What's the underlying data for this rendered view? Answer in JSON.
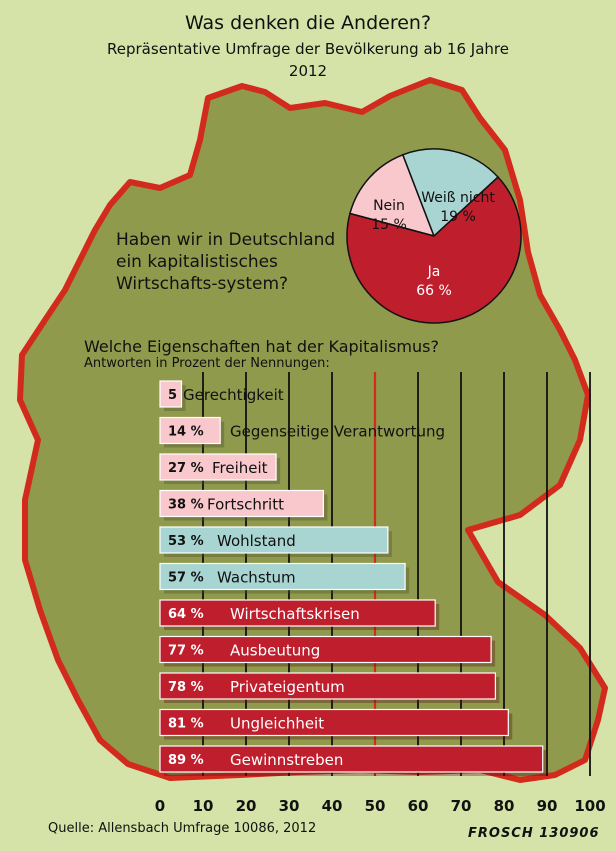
{
  "header": {
    "title": "Was denken die Anderen?",
    "subtitle": "Repräsentative Umfrage der Bevölkerung ab 16 Jahre",
    "year": "2012"
  },
  "question1": "Haben wir in Deutschland ein kapitalistisches Wirtschafts-system?",
  "question2": "Welche Eigenschaften hat der Kapitalismus?",
  "question2_note": "Antworten in Prozent der Nennungen:",
  "footer": {
    "source": "Quelle: Allensbach Umfrage 10086, 2012",
    "signature": "FROSCH 130906"
  },
  "colors": {
    "background": "#d5e3a8",
    "map_fill": "#8f9a4c",
    "map_outline": "#d22b1e",
    "pink": "#f8c8cc",
    "teal": "#a8d5d2",
    "red": "#bf1e2d"
  },
  "chart_data": [
    {
      "type": "pie",
      "slices": [
        {
          "label": "Ja",
          "value": 66,
          "display": "66 %",
          "color": "#bf1e2d"
        },
        {
          "label": "Nein",
          "value": 15,
          "display": "15 %",
          "color": "#f8c8cc"
        },
        {
          "label": "Weiß nicht",
          "value": 19,
          "display": "19 %",
          "color": "#a8d5d2"
        }
      ]
    },
    {
      "type": "bar",
      "orientation": "horizontal",
      "categories": [
        "Gerechtigkeit",
        "Gegenseitige Verantwortung",
        "Freiheit",
        "Fortschritt",
        "Wohlstand",
        "Wachstum",
        "Wirtschaftskrisen",
        "Ausbeutung",
        "Privateigentum",
        "Ungleichheit",
        "Gewinnstreben"
      ],
      "values": [
        5,
        14,
        27,
        38,
        53,
        57,
        64,
        77,
        78,
        81,
        89
      ],
      "value_labels": [
        "5",
        "14 %",
        "27 %",
        "38 %",
        "53 %",
        "57 %",
        "64 %",
        "77 %",
        "78 %",
        "81 %",
        "89 %"
      ],
      "colors": [
        "#f8c8cc",
        "#f8c8cc",
        "#f8c8cc",
        "#f8c8cc",
        "#a8d5d2",
        "#a8d5d2",
        "#bf1e2d",
        "#bf1e2d",
        "#bf1e2d",
        "#bf1e2d",
        "#bf1e2d"
      ],
      "label_colors": [
        "#111111",
        "#111111",
        "#111111",
        "#111111",
        "#111111",
        "#111111",
        "#ffffff",
        "#ffffff",
        "#ffffff",
        "#ffffff",
        "#ffffff"
      ],
      "x_ticks": [
        "0",
        "10",
        "20",
        "30",
        "40",
        "50",
        "60",
        "70",
        "80",
        "90",
        "100"
      ],
      "xlim": [
        0,
        100
      ],
      "reference_line": 50,
      "grid": true
    }
  ]
}
